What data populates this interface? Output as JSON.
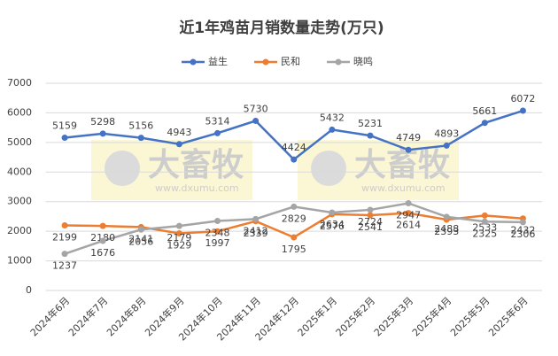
{
  "chart_data": {
    "type": "line",
    "title": "近1年鸡苗月销数量走势(万只)",
    "watermark": [
      "大畜牧",
      "www.dxumu.com"
    ],
    "categories": [
      "2024年6月",
      "2024年7月",
      "2024年8月",
      "2024年9月",
      "2024年10月",
      "2024年11月",
      "2024年12月",
      "2025年1月",
      "2025年2月",
      "2025年3月",
      "2025年4月",
      "2025年5月",
      "2025年6月"
    ],
    "series": [
      {
        "name": "益生",
        "color": "#4472c4",
        "values": [
          5159,
          5298,
          5156,
          4943,
          5314,
          5730,
          4424,
          5432,
          5231,
          4749,
          4893,
          5661,
          6072
        ]
      },
      {
        "name": "民和",
        "color": "#ed7d31",
        "values": [
          2199,
          2180,
          2141,
          1929,
          1997,
          2339,
          1795,
          2576,
          2541,
          2614,
          2393,
          2533,
          2432
        ]
      },
      {
        "name": "晓鸣",
        "color": "#a5a5a5",
        "values": [
          1237,
          1676,
          2056,
          2179,
          2348,
          2412,
          2829,
          2634,
          2724,
          2947,
          2488,
          2325,
          2306
        ]
      }
    ],
    "ylim": [
      0,
      7000
    ],
    "yticks": [
      0,
      1000,
      2000,
      3000,
      4000,
      5000,
      6000,
      7000
    ],
    "grid": true,
    "legend": "top"
  }
}
